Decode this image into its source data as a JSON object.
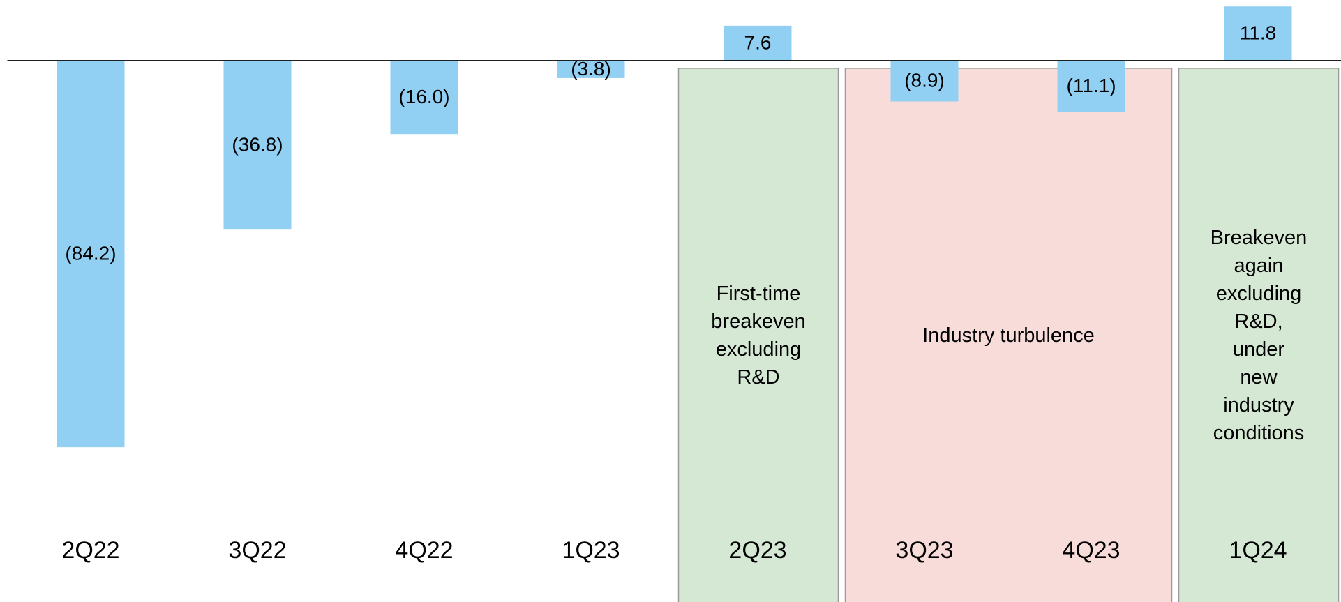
{
  "chart_data": {
    "type": "bar",
    "categories": [
      "2Q22",
      "3Q22",
      "4Q22",
      "1Q23",
      "2Q23",
      "3Q23",
      "4Q23",
      "1Q24"
    ],
    "values": [
      -84.2,
      -36.8,
      -16.0,
      -3.8,
      7.6,
      -8.9,
      -11.1,
      11.8
    ],
    "value_labels": [
      "(84.2)",
      "(36.8)",
      "(16.0)",
      "(3.8)",
      "7.6",
      "(8.9)",
      "(11.1)",
      "11.8"
    ],
    "color": "#92d0f3",
    "ylim": [
      -117.9,
      13.2
    ],
    "regions": [
      {
        "label": "First-time\nbreakeven\nexcluding\nR&D",
        "start": 4,
        "end": 4,
        "color": "#d5e8d4"
      },
      {
        "label": "Industry turbulence",
        "start": 5,
        "end": 6,
        "color": "#f8dcda"
      },
      {
        "label": "Breakeven\nagain excluding\nR&D, under\nnew industry\nconditions",
        "start": 7,
        "end": 7,
        "color": "#d5e8d4"
      }
    ]
  }
}
